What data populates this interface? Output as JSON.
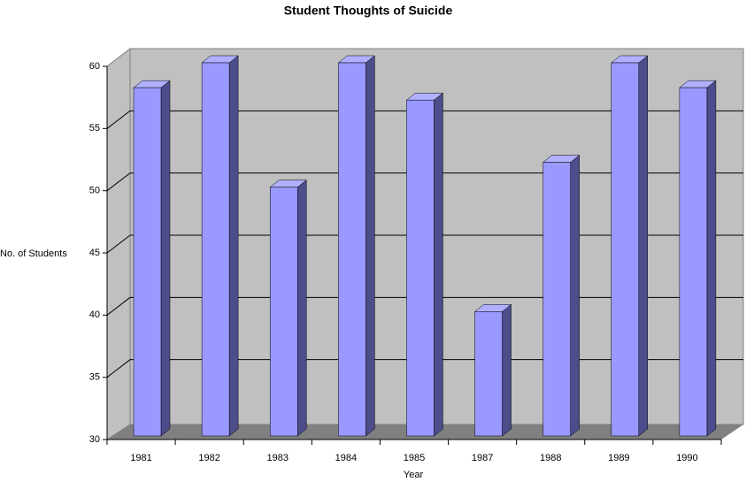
{
  "chart_data": {
    "type": "bar3d",
    "title": "Student Thoughts of Suicide",
    "x_label": "Year",
    "y_label": "No. of Students",
    "categories": [
      "1981",
      "1982",
      "1983",
      "1984",
      "1985",
      "1987",
      "1988",
      "1989",
      "1990"
    ],
    "values": [
      58,
      60,
      50,
      60,
      57,
      40,
      52,
      60,
      58
    ],
    "color": "#9999ff",
    "ylim": [
      30,
      60
    ],
    "yticks": [
      30,
      35,
      40,
      45,
      50,
      55,
      60
    ],
    "grid": true
  }
}
